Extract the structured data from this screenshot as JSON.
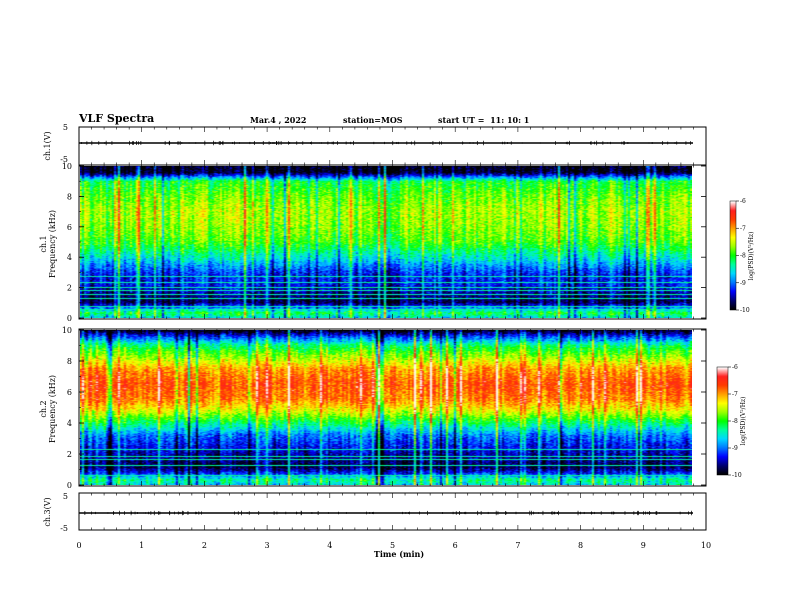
{
  "header": {
    "title": "VLF Spectra",
    "date": "Mar.4 , 2022",
    "station": "station=MOS",
    "start_ut": "start UT =  11: 10: 1"
  },
  "chart_data": [
    {
      "type": "line",
      "panel": "ch1-waveform",
      "ylabel": "ch.1(V)",
      "ylim": [
        -5,
        5
      ],
      "yticks": [
        "5",
        "-5"
      ],
      "x": [
        0,
        9.83
      ],
      "series": [
        {
          "values": [
            0,
            0
          ]
        }
      ]
    },
    {
      "type": "heatmap",
      "panel": "ch1-spectrogram",
      "ylabel": "ch.1\nFrequency (kHz)",
      "ylim": [
        0,
        10
      ],
      "yticks": [
        "0",
        "2",
        "4",
        "6",
        "8",
        "10"
      ],
      "xlim": [
        0,
        10
      ],
      "data_end_min": 9.83,
      "colorbar": {
        "label": "log(PSD)(V²/Hz)",
        "range": [
          -10,
          -6
        ],
        "ticks": [
          "-6",
          "-7",
          "-8",
          "-9",
          "-10"
        ]
      },
      "profile": [
        {
          "f": 0,
          "v": -8.6
        },
        {
          "f": 0.3,
          "v": -8.1
        },
        {
          "f": 0.6,
          "v": -8.9
        },
        {
          "f": 1.0,
          "v": -9.8
        },
        {
          "f": 1.6,
          "v": -9.6
        },
        {
          "f": 2.2,
          "v": -9.3
        },
        {
          "f": 2.8,
          "v": -9.3
        },
        {
          "f": 3.3,
          "v": -9.0
        },
        {
          "f": 4.0,
          "v": -8.5
        },
        {
          "f": 5.0,
          "v": -7.9
        },
        {
          "f": 6.0,
          "v": -7.7
        },
        {
          "f": 7.0,
          "v": -7.6
        },
        {
          "f": 8.0,
          "v": -7.8
        },
        {
          "f": 9.0,
          "v": -8.1
        },
        {
          "f": 9.3,
          "v": -9.0
        },
        {
          "f": 9.6,
          "v": -9.9
        },
        {
          "f": 10.0,
          "v": -10.0
        }
      ],
      "lines_khz": [
        0.55,
        0.75,
        1.25,
        1.5,
        1.8,
        2.0,
        2.3,
        2.7
      ]
    },
    {
      "type": "heatmap",
      "panel": "ch2-spectrogram",
      "ylabel": "ch.2\nFrequency (kHz)",
      "ylim": [
        0,
        10
      ],
      "yticks": [
        "0",
        "2",
        "4",
        "6",
        "8",
        "10"
      ],
      "xlim": [
        0,
        10
      ],
      "data_end_min": 9.83,
      "colorbar": {
        "label": "log(PSD)(V²/Hz)",
        "range": [
          -10,
          -6
        ],
        "ticks": [
          "-6",
          "-7",
          "-8",
          "-9",
          "-10"
        ]
      },
      "profile": [
        {
          "f": 0,
          "v": -8.6
        },
        {
          "f": 0.3,
          "v": -8.3
        },
        {
          "f": 0.7,
          "v": -9.2
        },
        {
          "f": 1.1,
          "v": -9.8
        },
        {
          "f": 1.8,
          "v": -9.6
        },
        {
          "f": 2.5,
          "v": -9.3
        },
        {
          "f": 3.2,
          "v": -9.0
        },
        {
          "f": 4.0,
          "v": -8.2
        },
        {
          "f": 4.8,
          "v": -7.4
        },
        {
          "f": 5.5,
          "v": -6.9
        },
        {
          "f": 6.5,
          "v": -6.7
        },
        {
          "f": 7.5,
          "v": -7.0
        },
        {
          "f": 8.2,
          "v": -7.6
        },
        {
          "f": 9.0,
          "v": -8.2
        },
        {
          "f": 9.6,
          "v": -9.2
        },
        {
          "f": 10.0,
          "v": -10.0
        }
      ],
      "lines_khz": [
        0.6,
        1.25,
        1.6,
        1.85,
        2.3
      ]
    },
    {
      "type": "line",
      "panel": "ch3-waveform",
      "ylabel": "ch.3(V)",
      "ylim": [
        -5,
        5
      ],
      "yticks": [
        "5",
        "-5"
      ],
      "x": [
        0,
        9.83
      ],
      "series": [
        {
          "values": [
            0,
            0
          ]
        }
      ]
    }
  ],
  "xaxis": {
    "label": "Time (min)",
    "range": [
      0,
      10
    ],
    "ticks": [
      "0",
      "1",
      "2",
      "3",
      "4",
      "5",
      "6",
      "7",
      "8",
      "9",
      "10"
    ]
  },
  "colors": {
    "frame": "#000000",
    "background": "#ffffff",
    "colormap": [
      "#000000",
      "#000070",
      "#0000ff",
      "#0078ff",
      "#00d8ff",
      "#00ff9c",
      "#00ff00",
      "#9cff00",
      "#ffff00",
      "#ffa000",
      "#ff3c00",
      "#ff2020",
      "#ffffff"
    ]
  }
}
